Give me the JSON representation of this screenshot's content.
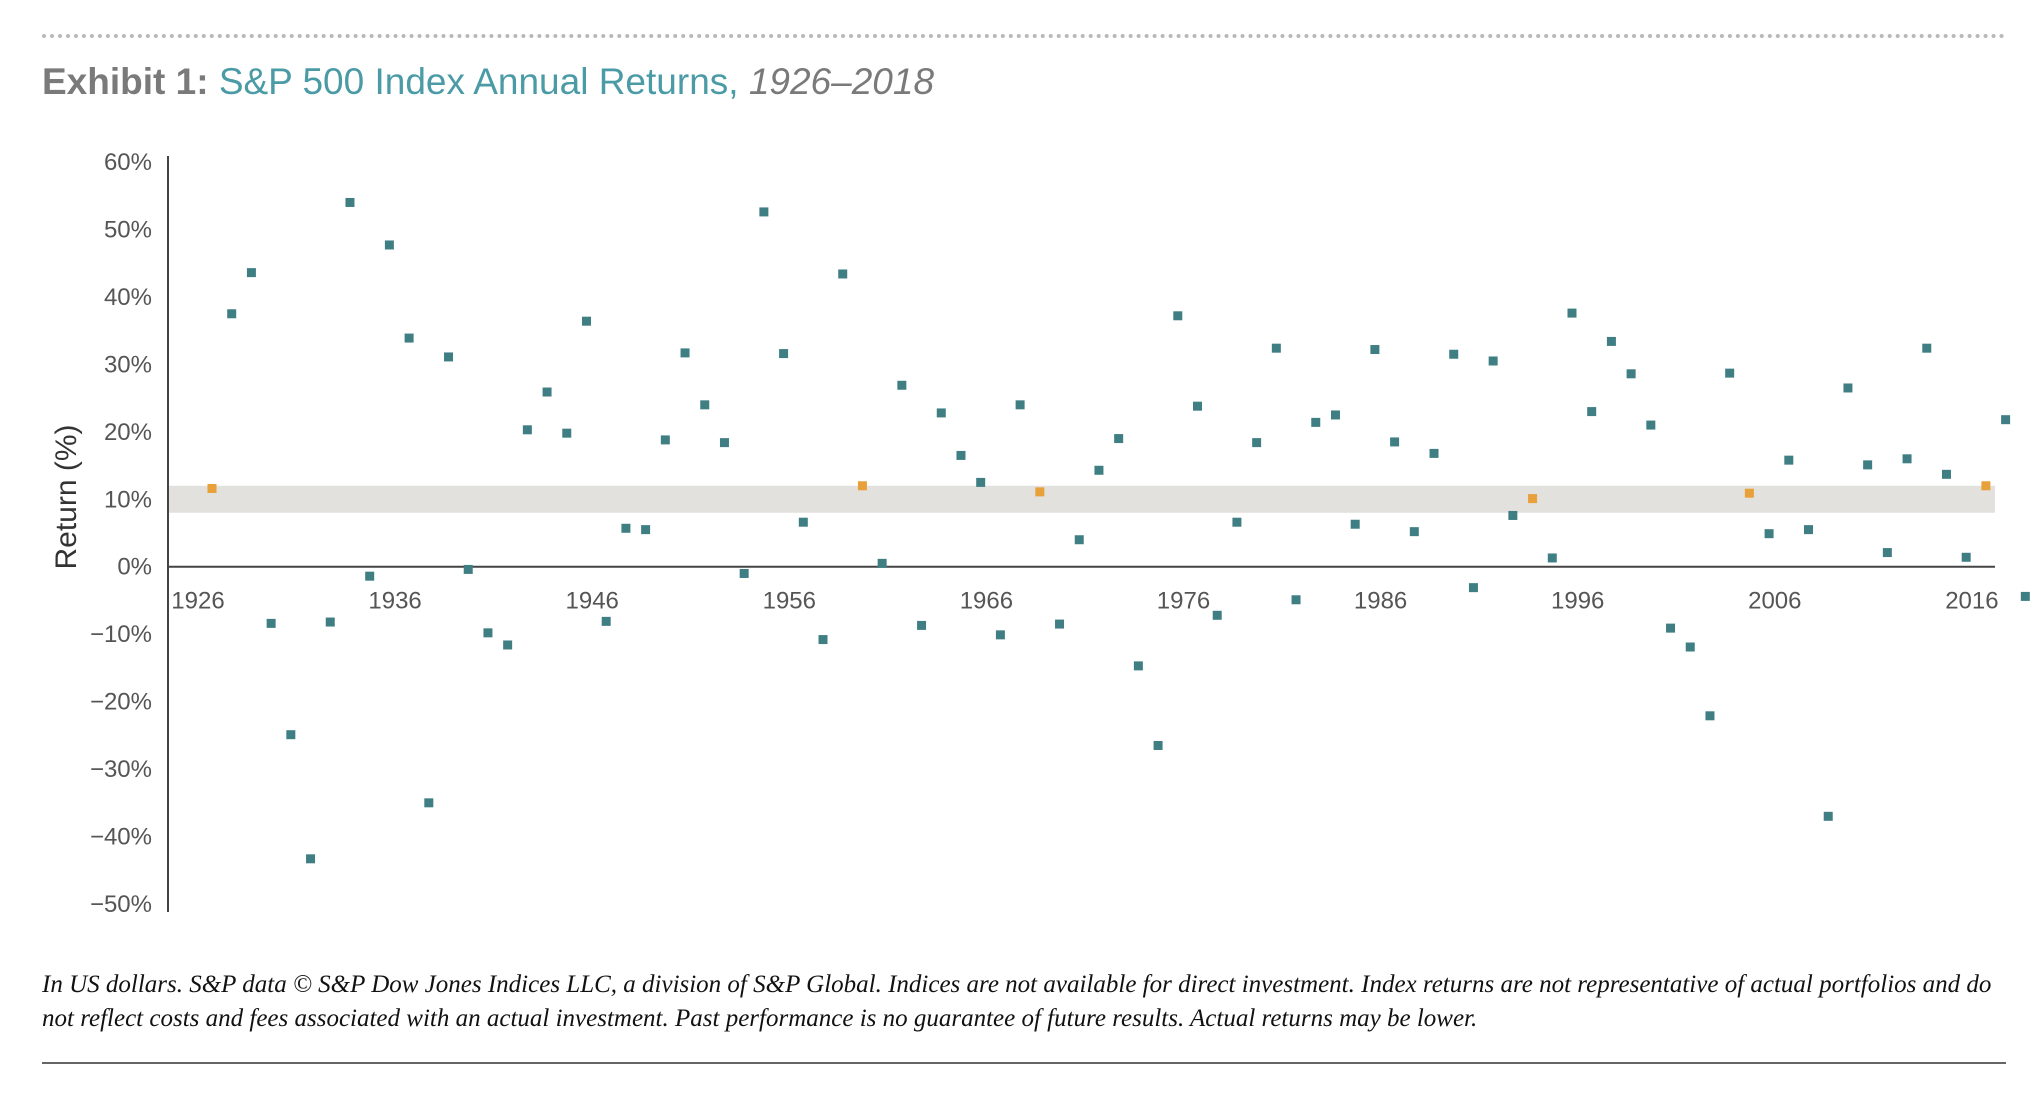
{
  "title": {
    "label": "Exhibit 1:",
    "main": "S&P 500 Index Annual Returns,",
    "years": "1926–2018"
  },
  "footnote": "In US dollars. S&P data © S&P Dow Jones Indices LLC, a division of S&P Global. Indices are not available for direct investment. Index returns are not representative of actual portfolios and do not reflect costs and fees associated with an actual investment. Past performance is no guarantee of future results. Actual returns may be lower.",
  "colors": {
    "point": "#3f7f84",
    "highlight_point": "#e8a03a",
    "band": "#e2e1dd",
    "axis": "#444444",
    "title_label": "#7a7a7a",
    "title_main": "#4b9ba6"
  },
  "chart_data": {
    "type": "scatter",
    "title": "S&P 500 Index Annual Returns, 1926–2018",
    "xlabel": "",
    "ylabel": "Return (%)",
    "xlim": [
      1925,
      2019
    ],
    "ylim": [
      -50,
      60
    ],
    "y_ticks": [
      60,
      50,
      40,
      30,
      20,
      10,
      0,
      -10,
      -20,
      -30,
      -40,
      -50
    ],
    "y_tick_labels": [
      "60%",
      "50%",
      "40%",
      "30%",
      "20%",
      "10%",
      "0%",
      "−10%",
      "−20%",
      "−30%",
      "−40%",
      "−50%"
    ],
    "x_tick_labels": [
      "1926",
      "1936",
      "1946",
      "1956",
      "1966",
      "1976",
      "1986",
      "1996",
      "2006",
      "2016"
    ],
    "x_ticks": [
      1926,
      1936,
      1946,
      1956,
      1966,
      1976,
      1986,
      1996,
      2006,
      2016
    ],
    "band": {
      "from": 8,
      "to": 12
    },
    "highlight_years": [
      1926,
      1959,
      1968,
      1993,
      2004,
      2016
    ],
    "x": [
      1926,
      1927,
      1928,
      1929,
      1930,
      1931,
      1932,
      1933,
      1934,
      1935,
      1936,
      1937,
      1938,
      1939,
      1940,
      1941,
      1942,
      1943,
      1944,
      1945,
      1946,
      1947,
      1948,
      1949,
      1950,
      1951,
      1952,
      1953,
      1954,
      1955,
      1956,
      1957,
      1958,
      1959,
      1960,
      1961,
      1962,
      1963,
      1964,
      1965,
      1966,
      1967,
      1968,
      1969,
      1970,
      1971,
      1972,
      1973,
      1974,
      1975,
      1976,
      1977,
      1978,
      1979,
      1980,
      1981,
      1982,
      1983,
      1984,
      1985,
      1986,
      1987,
      1988,
      1989,
      1990,
      1991,
      1992,
      1993,
      1994,
      1995,
      1996,
      1997,
      1998,
      1999,
      2000,
      2001,
      2002,
      2003,
      2004,
      2005,
      2006,
      2007,
      2008,
      2009,
      2010,
      2011,
      2012,
      2013,
      2014,
      2015,
      2016,
      2017,
      2018
    ],
    "y": [
      11.6,
      37.5,
      43.6,
      -8.4,
      -24.9,
      -43.3,
      -8.2,
      54.0,
      -1.4,
      47.7,
      33.9,
      -35.0,
      31.1,
      -0.4,
      -9.8,
      -11.6,
      20.3,
      25.9,
      19.8,
      36.4,
      -8.1,
      5.7,
      5.5,
      18.8,
      31.7,
      24.0,
      18.4,
      -1.0,
      52.6,
      31.6,
      6.6,
      -10.8,
      43.4,
      12.0,
      0.5,
      26.9,
      -8.7,
      22.8,
      16.5,
      12.5,
      -10.1,
      24.0,
      11.1,
      -8.5,
      4.0,
      14.3,
      19.0,
      -14.7,
      -26.5,
      37.2,
      23.8,
      -7.2,
      6.6,
      18.4,
      32.4,
      -4.9,
      21.4,
      22.5,
      6.3,
      32.2,
      18.5,
      5.2,
      16.8,
      31.5,
      -3.1,
      30.5,
      7.6,
      10.1,
      1.3,
      37.6,
      23.0,
      33.4,
      28.6,
      21.0,
      -9.1,
      -11.9,
      -22.1,
      28.7,
      10.9,
      4.9,
      15.8,
      5.5,
      -37.0,
      26.5,
      15.1,
      2.1,
      16.0,
      32.4,
      13.7,
      1.4,
      12.0,
      21.8,
      -4.4
    ]
  }
}
